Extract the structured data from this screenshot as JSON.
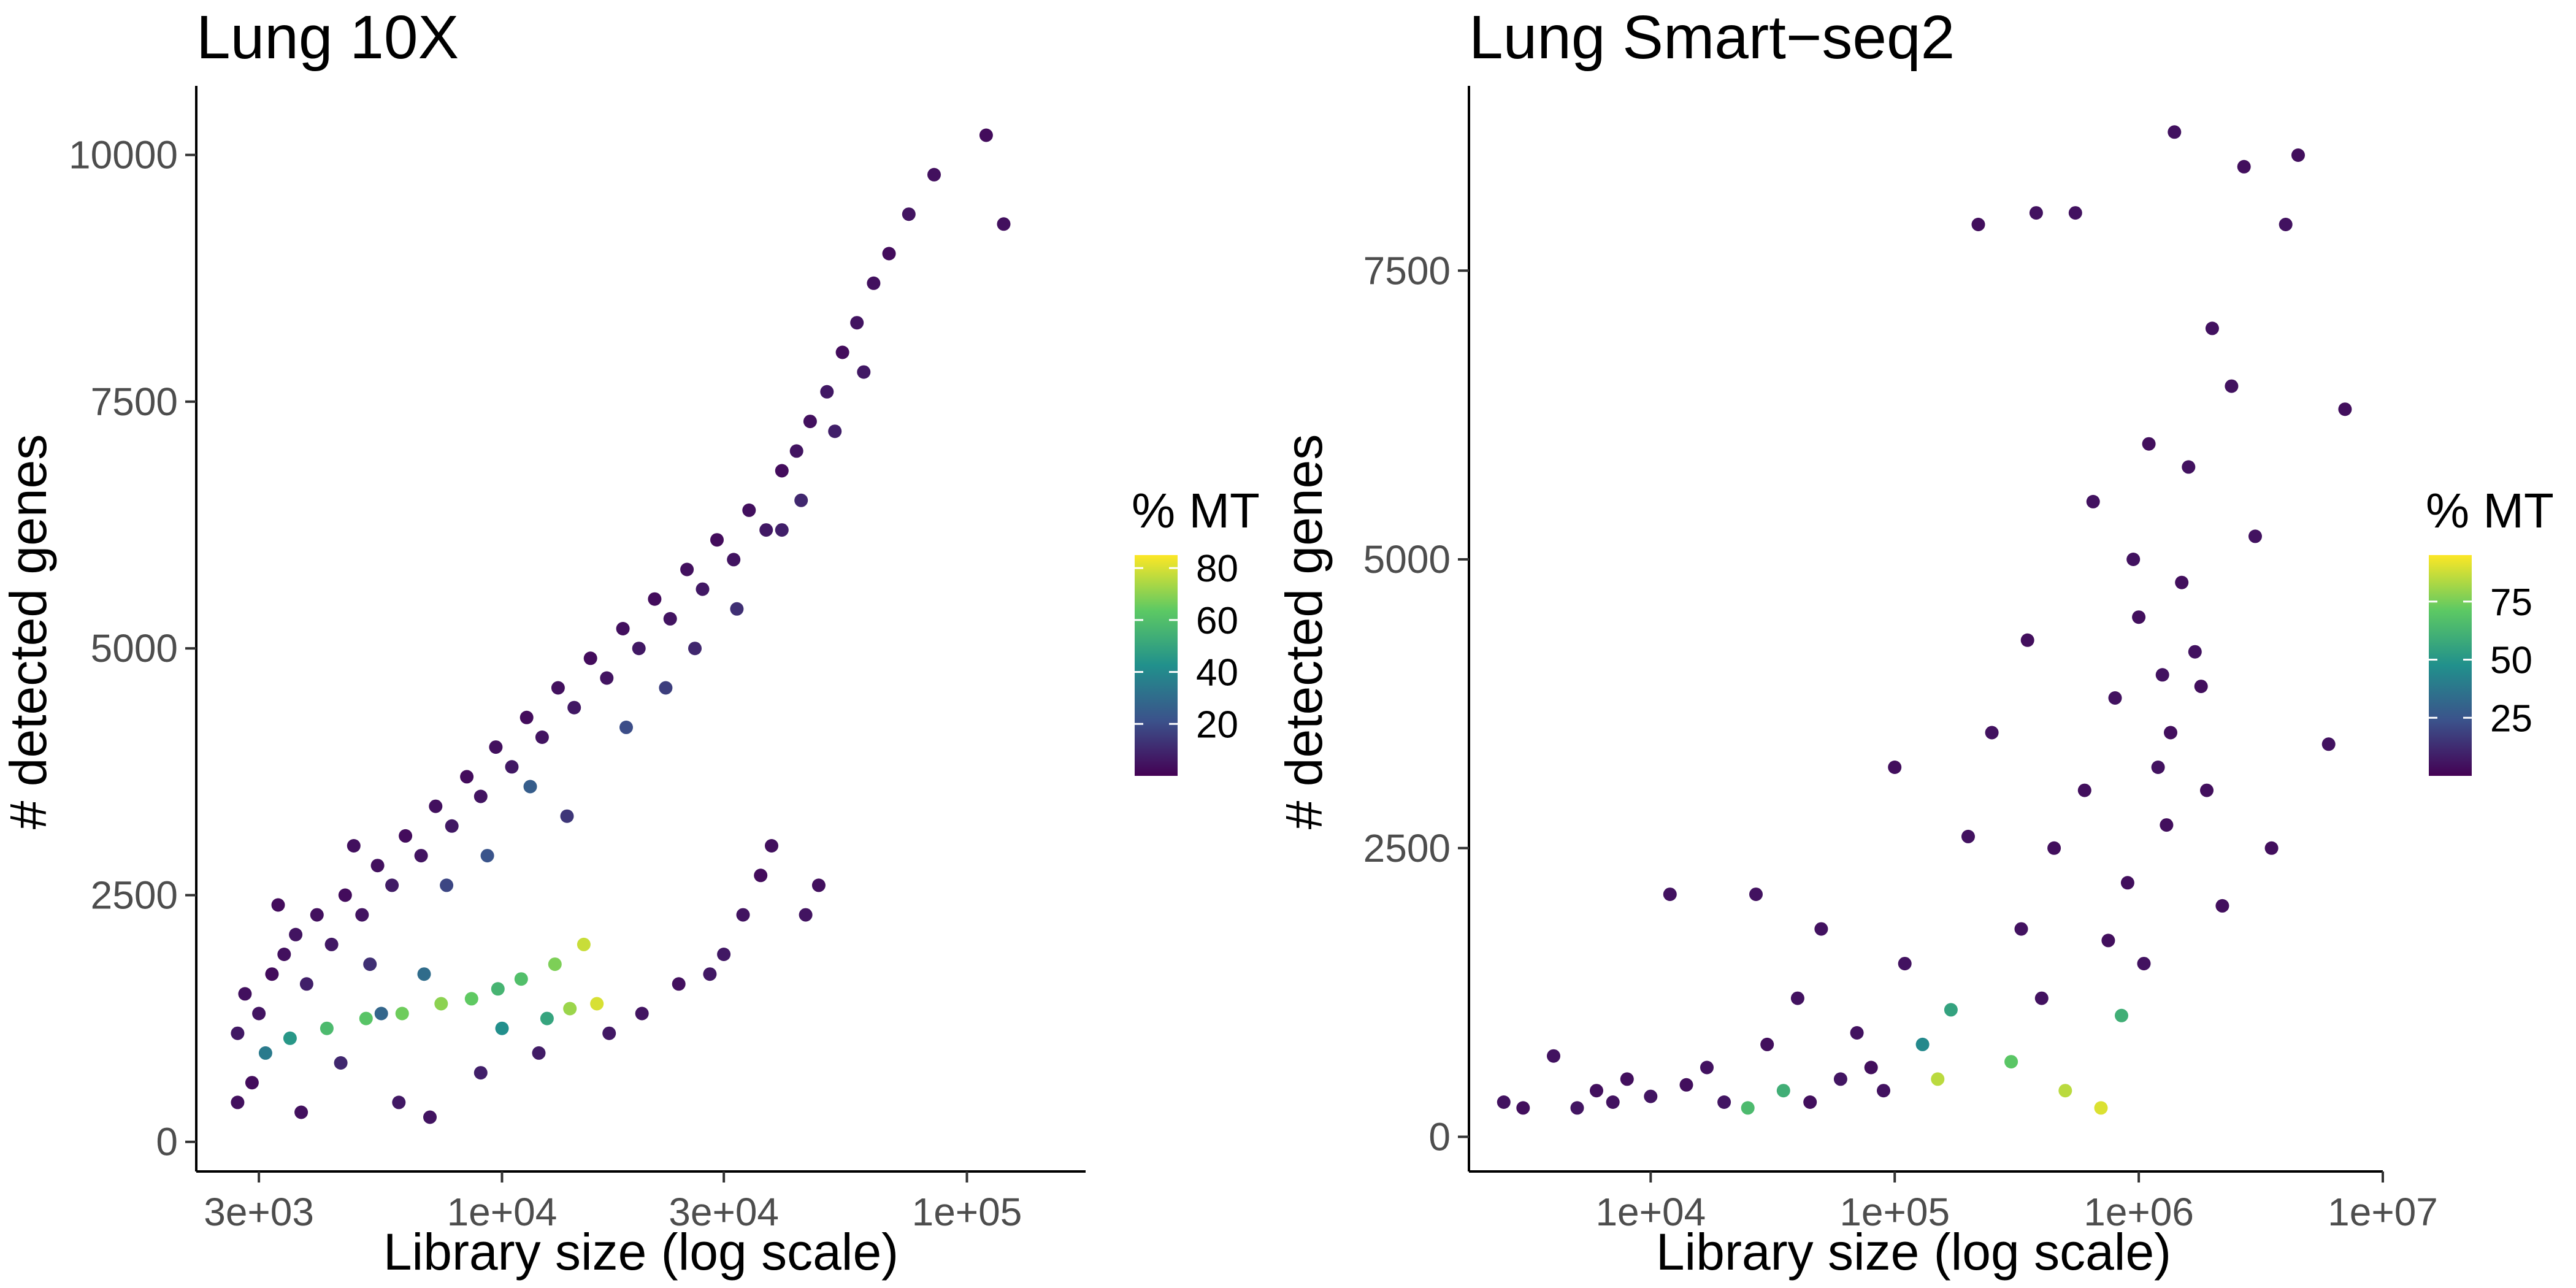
{
  "chart_data": [
    {
      "type": "scatter",
      "title": "Lung 10X",
      "xlabel": "Library size (log scale)",
      "ylabel": "# detected genes",
      "x_scale": "log",
      "xlim": [
        2200,
        180000
      ],
      "ylim": [
        -300,
        10700
      ],
      "x_ticks": [
        {
          "value": 3000,
          "label": "3e+03"
        },
        {
          "value": 10000,
          "label": "1e+04"
        },
        {
          "value": 30000,
          "label": "3e+04"
        },
        {
          "value": 100000,
          "label": "1e+05"
        }
      ],
      "y_ticks": [
        {
          "value": 0,
          "label": "0"
        },
        {
          "value": 2500,
          "label": "2500"
        },
        {
          "value": 5000,
          "label": "5000"
        },
        {
          "value": 7500,
          "label": "7500"
        },
        {
          "value": 10000,
          "label": "10000"
        }
      ],
      "grid": false,
      "legend": {
        "title": "% MT",
        "placement": "right",
        "min": 0,
        "max": 85,
        "ticks": [
          {
            "value": 20,
            "label": "20"
          },
          {
            "value": 40,
            "label": "40"
          },
          {
            "value": 60,
            "label": "60"
          },
          {
            "value": 80,
            "label": "80"
          }
        ]
      },
      "points": [
        [
          2700,
          1100,
          6
        ],
        [
          2800,
          1500,
          4
        ],
        [
          3000,
          1300,
          5
        ],
        [
          3200,
          1700,
          3
        ],
        [
          3400,
          1900,
          4
        ],
        [
          3600,
          2100,
          5
        ],
        [
          3800,
          1600,
          8
        ],
        [
          4000,
          2300,
          4
        ],
        [
          4300,
          2000,
          6
        ],
        [
          4600,
          2500,
          3
        ],
        [
          5000,
          2300,
          5
        ],
        [
          5400,
          2800,
          4
        ],
        [
          5800,
          2600,
          7
        ],
        [
          6200,
          3100,
          3
        ],
        [
          6700,
          2900,
          5
        ],
        [
          7200,
          3400,
          4
        ],
        [
          7800,
          3200,
          6
        ],
        [
          8400,
          3700,
          3
        ],
        [
          9000,
          3500,
          5
        ],
        [
          9700,
          4000,
          4
        ],
        [
          10500,
          3800,
          6
        ],
        [
          11300,
          4300,
          3
        ],
        [
          12200,
          4100,
          5
        ],
        [
          13200,
          4600,
          4
        ],
        [
          14300,
          4400,
          6
        ],
        [
          15500,
          4900,
          3
        ],
        [
          16800,
          4700,
          5
        ],
        [
          18200,
          5200,
          4
        ],
        [
          19700,
          5000,
          6
        ],
        [
          21300,
          5500,
          3
        ],
        [
          23000,
          5300,
          5
        ],
        [
          25000,
          5800,
          4
        ],
        [
          27000,
          5600,
          6
        ],
        [
          29000,
          6100,
          3
        ],
        [
          31500,
          5900,
          5
        ],
        [
          34000,
          6400,
          4
        ],
        [
          37000,
          6200,
          6
        ],
        [
          40000,
          6800,
          3
        ],
        [
          43000,
          7000,
          5
        ],
        [
          46000,
          7300,
          4
        ],
        [
          50000,
          7600,
          6
        ],
        [
          54000,
          8000,
          3
        ],
        [
          58000,
          8300,
          5
        ],
        [
          63000,
          8700,
          4
        ],
        [
          68000,
          9000,
          3
        ],
        [
          75000,
          9400,
          5
        ],
        [
          85000,
          9800,
          4
        ],
        [
          110000,
          10200,
          3
        ],
        [
          120000,
          9300,
          4
        ],
        [
          3100,
          900,
          35
        ],
        [
          3500,
          1050,
          45
        ],
        [
          4200,
          1150,
          58
        ],
        [
          5100,
          1250,
          62
        ],
        [
          6100,
          1300,
          66
        ],
        [
          7400,
          1400,
          70
        ],
        [
          8600,
          1450,
          64
        ],
        [
          9800,
          1550,
          56
        ],
        [
          11000,
          1650,
          60
        ],
        [
          13000,
          1800,
          68
        ],
        [
          15000,
          2000,
          78
        ],
        [
          16000,
          1400,
          80
        ],
        [
          14000,
          1350,
          72
        ],
        [
          12500,
          1250,
          50
        ],
        [
          10000,
          1150,
          42
        ],
        [
          4500,
          800,
          10
        ],
        [
          6000,
          400,
          6
        ],
        [
          7000,
          250,
          5
        ],
        [
          9000,
          700,
          8
        ],
        [
          12000,
          900,
          7
        ],
        [
          17000,
          1100,
          6
        ],
        [
          20000,
          1300,
          5
        ],
        [
          24000,
          1600,
          4
        ],
        [
          28000,
          1700,
          6
        ],
        [
          33000,
          2300,
          5
        ],
        [
          36000,
          2700,
          3
        ],
        [
          38000,
          3000,
          4
        ],
        [
          45000,
          2300,
          5
        ],
        [
          48000,
          2600,
          4
        ],
        [
          30000,
          1900,
          6
        ],
        [
          3300,
          2400,
          3
        ],
        [
          4800,
          3000,
          4
        ],
        [
          5200,
          1800,
          12
        ],
        [
          7600,
          2600,
          18
        ],
        [
          9300,
          2900,
          22
        ],
        [
          11500,
          3600,
          25
        ],
        [
          13800,
          3300,
          14
        ],
        [
          18500,
          4200,
          20
        ],
        [
          22500,
          4600,
          16
        ],
        [
          26000,
          5000,
          10
        ],
        [
          32000,
          5400,
          12
        ],
        [
          40000,
          6200,
          8
        ],
        [
          44000,
          6500,
          10
        ],
        [
          52000,
          7200,
          8
        ],
        [
          60000,
          7800,
          6
        ],
        [
          2700,
          400,
          4
        ],
        [
          2900,
          600,
          3
        ],
        [
          3700,
          300,
          4
        ],
        [
          5500,
          1300,
          28
        ],
        [
          6800,
          1700,
          30
        ]
      ]
    },
    {
      "type": "scatter",
      "title": "Lung Smart−seq2",
      "xlabel": "Library size (log scale)",
      "ylabel": "# detected genes",
      "x_scale": "log",
      "xlim": [
        1800,
        10000000
      ],
      "ylim": [
        -300,
        9100
      ],
      "x_ticks": [
        {
          "value": 10000,
          "label": "1e+04"
        },
        {
          "value": 100000,
          "label": "1e+05"
        },
        {
          "value": 1000000,
          "label": "1e+06"
        },
        {
          "value": 10000000,
          "label": "1e+07"
        }
      ],
      "y_ticks": [
        {
          "value": 0,
          "label": "0"
        },
        {
          "value": 2500,
          "label": "2500"
        },
        {
          "value": 5000,
          "label": "5000"
        },
        {
          "value": 7500,
          "label": "7500"
        }
      ],
      "grid": false,
      "legend": {
        "title": "% MT",
        "placement": "right",
        "min": 0,
        "max": 95,
        "ticks": [
          {
            "value": 25,
            "label": "25"
          },
          {
            "value": 50,
            "label": "50"
          },
          {
            "value": 75,
            "label": "75"
          }
        ]
      },
      "points": [
        [
          2500,
          300,
          5
        ],
        [
          3000,
          250,
          4
        ],
        [
          4000,
          700,
          5
        ],
        [
          5000,
          250,
          6
        ],
        [
          6000,
          400,
          4
        ],
        [
          7000,
          300,
          5
        ],
        [
          8000,
          500,
          4
        ],
        [
          10000,
          350,
          6
        ],
        [
          12000,
          2100,
          5
        ],
        [
          14000,
          450,
          4
        ],
        [
          17000,
          600,
          5
        ],
        [
          20000,
          300,
          6
        ],
        [
          25000,
          250,
          65
        ],
        [
          27000,
          2100,
          5
        ],
        [
          30000,
          800,
          4
        ],
        [
          35000,
          400,
          60
        ],
        [
          40000,
          1200,
          5
        ],
        [
          45000,
          300,
          4
        ],
        [
          50000,
          1800,
          5
        ],
        [
          60000,
          500,
          6
        ],
        [
          70000,
          900,
          5
        ],
        [
          80000,
          600,
          4
        ],
        [
          90000,
          400,
          5
        ],
        [
          100000,
          3200,
          4
        ],
        [
          110000,
          1500,
          5
        ],
        [
          130000,
          800,
          45
        ],
        [
          150000,
          500,
          85
        ],
        [
          170000,
          1100,
          55
        ],
        [
          200000,
          2600,
          5
        ],
        [
          220000,
          7900,
          4
        ],
        [
          250000,
          3500,
          5
        ],
        [
          300000,
          650,
          70
        ],
        [
          330000,
          1800,
          5
        ],
        [
          350000,
          4300,
          4
        ],
        [
          380000,
          8000,
          5
        ],
        [
          400000,
          1200,
          5
        ],
        [
          450000,
          2500,
          4
        ],
        [
          500000,
          400,
          85
        ],
        [
          550000,
          8000,
          5
        ],
        [
          600000,
          3000,
          4
        ],
        [
          650000,
          5500,
          5
        ],
        [
          700000,
          250,
          90
        ],
        [
          750000,
          1700,
          4
        ],
        [
          800000,
          3800,
          5
        ],
        [
          850000,
          1050,
          60
        ],
        [
          900000,
          2200,
          4
        ],
        [
          950000,
          5000,
          5
        ],
        [
          1000000,
          4500,
          4
        ],
        [
          1050000,
          1500,
          5
        ],
        [
          1100000,
          6000,
          4
        ],
        [
          1200000,
          3200,
          5
        ],
        [
          1300000,
          2700,
          4
        ],
        [
          1400000,
          8700,
          5
        ],
        [
          1500000,
          4800,
          4
        ],
        [
          1600000,
          5800,
          5
        ],
        [
          1800000,
          3900,
          4
        ],
        [
          2000000,
          7000,
          5
        ],
        [
          2200000,
          2000,
          4
        ],
        [
          2400000,
          6500,
          5
        ],
        [
          2700000,
          8400,
          4
        ],
        [
          3000000,
          5200,
          5
        ],
        [
          3500000,
          2500,
          4
        ],
        [
          4000000,
          7900,
          5
        ],
        [
          4500000,
          8500,
          4
        ],
        [
          6000000,
          3400,
          5
        ],
        [
          7000000,
          6300,
          4
        ],
        [
          1250000,
          4000,
          5
        ],
        [
          1350000,
          3500,
          4
        ],
        [
          1700000,
          4200,
          5
        ],
        [
          1900000,
          3000,
          4
        ]
      ]
    }
  ]
}
